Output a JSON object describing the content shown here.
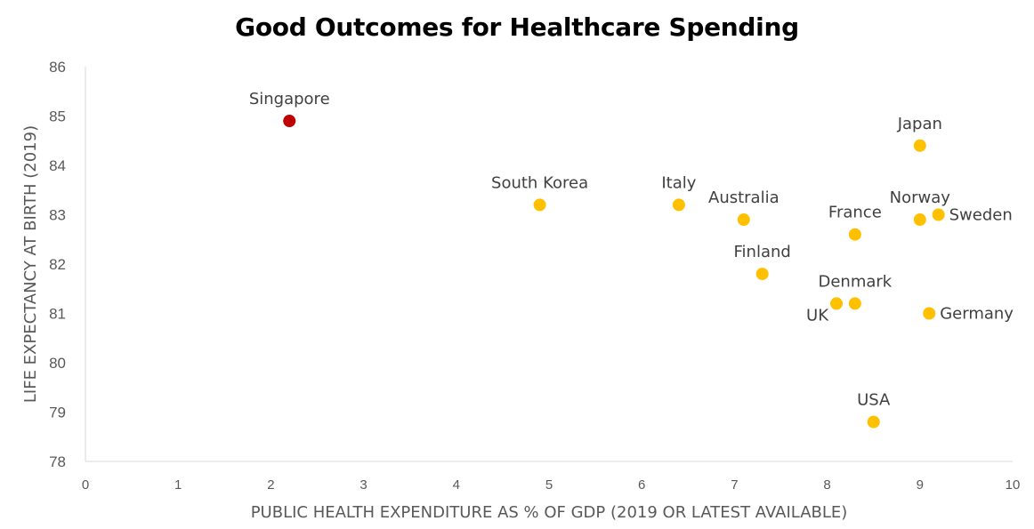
{
  "chart_data": {
    "type": "scatter",
    "title": "Good Outcomes for Healthcare Spending",
    "xlabel": "PUBLIC HEALTH EXPENDITURE AS % OF GDP (2019 OR LATEST AVAILABLE)",
    "ylabel": "LIFE EXPECTANCY AT BIRTH (2019)",
    "xlim": [
      0,
      10
    ],
    "ylim": [
      78,
      86
    ],
    "xticks": [
      0,
      1,
      2,
      3,
      4,
      5,
      6,
      7,
      8,
      9,
      10
    ],
    "yticks": [
      78,
      79,
      80,
      81,
      82,
      83,
      84,
      85,
      86
    ],
    "grid": false,
    "colors": {
      "highlight": "#C00000",
      "default": "#FFC000"
    },
    "points": [
      {
        "label": "Singapore",
        "x": 2.2,
        "y": 84.9,
        "highlight": true,
        "label_pos": "above"
      },
      {
        "label": "Japan",
        "x": 9.0,
        "y": 84.4,
        "highlight": false,
        "label_pos": "above"
      },
      {
        "label": "South Korea",
        "x": 4.9,
        "y": 83.2,
        "highlight": false,
        "label_pos": "above"
      },
      {
        "label": "Italy",
        "x": 6.4,
        "y": 83.2,
        "highlight": false,
        "label_pos": "above"
      },
      {
        "label": "Australia",
        "x": 7.1,
        "y": 82.9,
        "highlight": false,
        "label_pos": "above"
      },
      {
        "label": "Norway",
        "x": 9.0,
        "y": 82.9,
        "highlight": false,
        "label_pos": "above"
      },
      {
        "label": "Sweden",
        "x": 9.2,
        "y": 83.0,
        "highlight": false,
        "label_pos": "right"
      },
      {
        "label": "France",
        "x": 8.3,
        "y": 82.6,
        "highlight": false,
        "label_pos": "above"
      },
      {
        "label": "Finland",
        "x": 7.3,
        "y": 81.8,
        "highlight": false,
        "label_pos": "above"
      },
      {
        "label": "Denmark",
        "x": 8.3,
        "y": 81.2,
        "highlight": false,
        "label_pos": "above"
      },
      {
        "label": "UK",
        "x": 8.1,
        "y": 81.2,
        "highlight": false,
        "label_pos": "left"
      },
      {
        "label": "Germany",
        "x": 9.1,
        "y": 81.0,
        "highlight": false,
        "label_pos": "right"
      },
      {
        "label": "USA",
        "x": 8.5,
        "y": 78.8,
        "highlight": false,
        "label_pos": "above"
      }
    ]
  }
}
